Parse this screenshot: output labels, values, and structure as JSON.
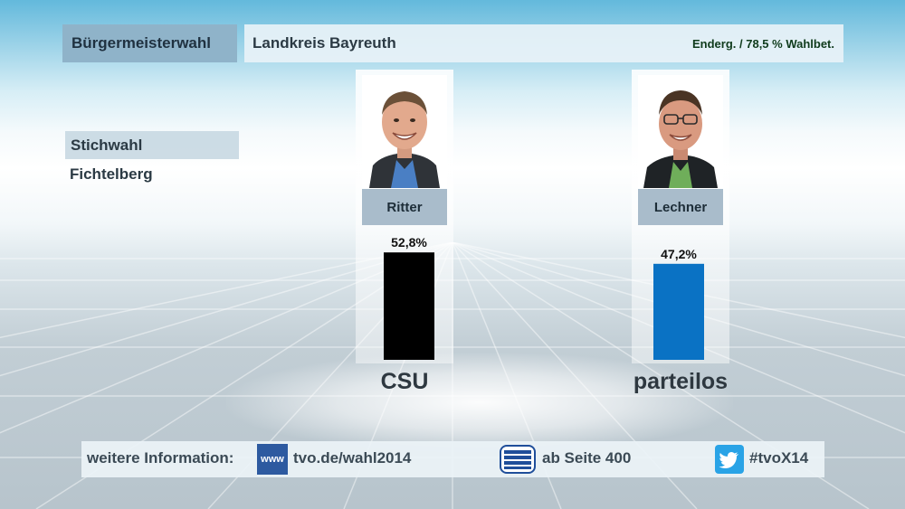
{
  "header": {
    "election": "Bürgermeisterwahl",
    "region": "Landkreis Bayreuth",
    "status": "Enderg. / 78,5 % Wahlbet."
  },
  "side": {
    "round": "Stichwahl",
    "place": "Fichtelberg"
  },
  "chart_data": {
    "type": "bar",
    "categories": [
      "Ritter",
      "Lechner"
    ],
    "values": [
      52.8,
      47.2
    ],
    "value_labels": [
      "52,8%",
      "47,2%"
    ],
    "parties": [
      "CSU",
      "parteilos"
    ],
    "colors": [
      "#000000",
      "#0a72c4"
    ],
    "ylim": [
      0,
      60
    ],
    "grid": false,
    "title": "",
    "xlabel": "",
    "ylabel": ""
  },
  "candidates": [
    {
      "name": "Ritter",
      "party": "CSU",
      "photo_icon": "candidate-ritter-photo"
    },
    {
      "name": "Lechner",
      "party": "parteilos",
      "photo_icon": "candidate-lechner-photo"
    }
  ],
  "footer": {
    "label": "weitere Information:",
    "www_icon_text": "www",
    "www_text": "tvo.de/wahl2014",
    "teletext_icon": "teletext-icon",
    "teletext_text": "ab Seite 400",
    "twitter_icon": "twitter-bird-icon",
    "twitter_text": "#tvoX14"
  }
}
